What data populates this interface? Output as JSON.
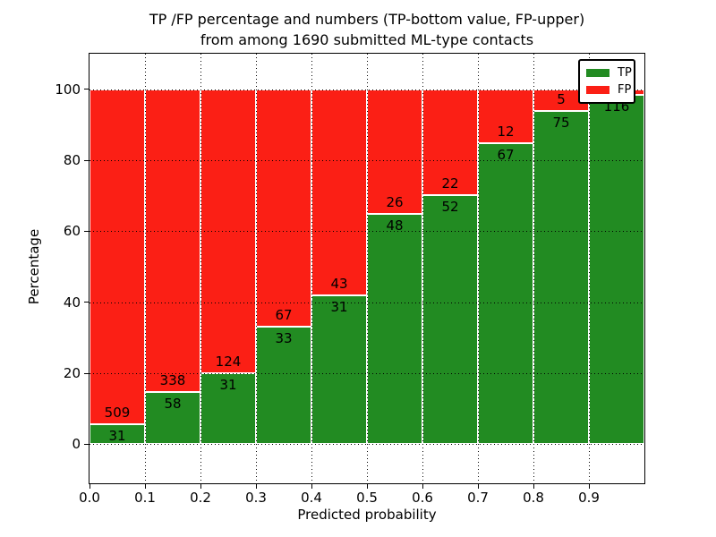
{
  "figure": {
    "background": "#ffffff"
  },
  "chart_data": {
    "type": "bar",
    "stacked": true,
    "orientation": "vertical",
    "title_lines": [
      "TP /FP percentage and numbers (TP-bottom value, FP-upper)",
      "from among 1690 submitted ML-type contacts"
    ],
    "total_submitted": 1690,
    "xlabel": "Predicted probability",
    "ylabel": "Percentage",
    "xlim": [
      0.0,
      1.0
    ],
    "ylim": [
      -11,
      110
    ],
    "x_tick_labels": [
      "0.0",
      "0.1",
      "0.2",
      "0.3",
      "0.4",
      "0.5",
      "0.6",
      "0.7",
      "0.8",
      "0.9"
    ],
    "y_tick_values": [
      0,
      20,
      40,
      60,
      80,
      100
    ],
    "y_tick_labels": [
      "0",
      "20",
      "40",
      "60",
      "80",
      "100"
    ],
    "grid_style": "dotted",
    "grid_color": "#000000",
    "bar_edge_color": "#ffffff",
    "series": [
      {
        "name": "TP",
        "color": "#228b22"
      },
      {
        "name": "FP",
        "color": "#fb1f15"
      }
    ],
    "legend": {
      "position": "upper-right",
      "entries": [
        {
          "label": "TP",
          "color": "#228b22"
        },
        {
          "label": "FP",
          "color": "#fb1f15"
        }
      ]
    },
    "bins": [
      {
        "x0": 0.0,
        "x1": 0.1,
        "tp": 31,
        "fp": 509,
        "tp_label": "31",
        "fp_label": "509"
      },
      {
        "x0": 0.1,
        "x1": 0.2,
        "tp": 58,
        "fp": 338,
        "tp_label": "58",
        "fp_label": "338"
      },
      {
        "x0": 0.2,
        "x1": 0.3,
        "tp": 31,
        "fp": 124,
        "tp_label": "31",
        "fp_label": "124"
      },
      {
        "x0": 0.3,
        "x1": 0.4,
        "tp": 33,
        "fp": 67,
        "tp_label": "33",
        "fp_label": "67"
      },
      {
        "x0": 0.4,
        "x1": 0.5,
        "tp": 31,
        "fp": 43,
        "tp_label": "31",
        "fp_label": "43"
      },
      {
        "x0": 0.5,
        "x1": 0.6,
        "tp": 48,
        "fp": 26,
        "tp_label": "48",
        "fp_label": "26"
      },
      {
        "x0": 0.6,
        "x1": 0.7,
        "tp": 52,
        "fp": 22,
        "tp_label": "52",
        "fp_label": "22"
      },
      {
        "x0": 0.7,
        "x1": 0.8,
        "tp": 67,
        "fp": 12,
        "tp_label": "67",
        "fp_label": "12"
      },
      {
        "x0": 0.8,
        "x1": 0.9,
        "tp": 75,
        "fp": 5,
        "tp_label": "75",
        "fp_label": "5"
      },
      {
        "x0": 0.9,
        "x1": 1.0,
        "tp": 116,
        "fp": 2,
        "tp_label": "116",
        "fp_label": ""
      }
    ]
  }
}
